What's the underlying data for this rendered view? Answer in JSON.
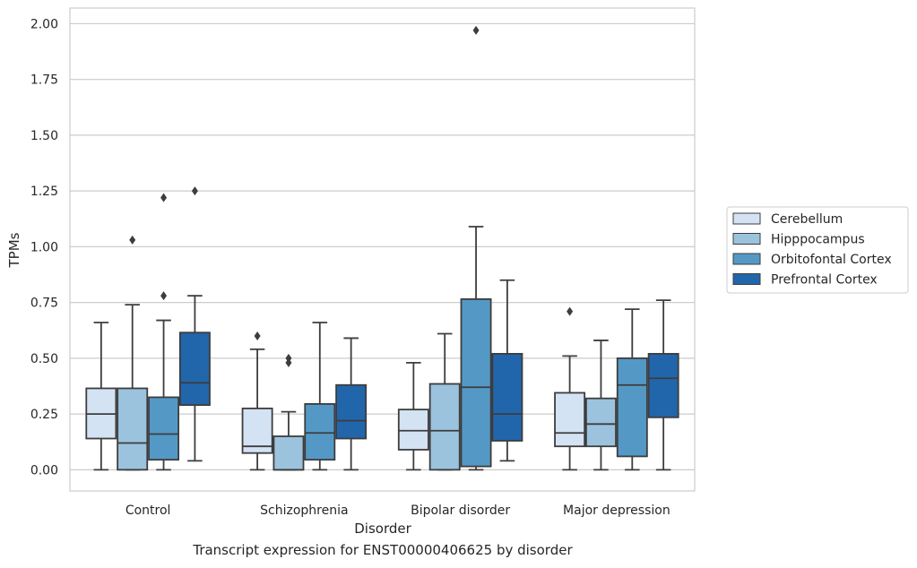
{
  "caption": "Transcript expression for ENST00000406625 by disorder",
  "chart_data": {
    "type": "box",
    "title": "",
    "xlabel": "Disorder",
    "ylabel": "TPMs",
    "ylim": [
      -0.095,
      2.07
    ],
    "yticks": [
      0.0,
      0.25,
      0.5,
      0.75,
      1.0,
      1.25,
      1.5,
      1.75,
      2.0
    ],
    "ytick_labels": [
      "0.00",
      "0.25",
      "0.50",
      "0.75",
      "1.00",
      "1.25",
      "1.50",
      "1.75",
      "2.00"
    ],
    "grid": "horizontal",
    "legend_position": "right",
    "categories": [
      "Control",
      "Schizophrenia",
      "Bipolar disorder",
      "Major depression"
    ],
    "series": [
      {
        "name": "Cerebellum",
        "color": "#d4e3f3",
        "boxes": [
          {
            "whislo": 0.0,
            "q1": 0.14,
            "med": 0.25,
            "q3": 0.365,
            "whishi": 0.66,
            "fliers": []
          },
          {
            "whislo": 0.0,
            "q1": 0.075,
            "med": 0.105,
            "q3": 0.275,
            "whishi": 0.54,
            "fliers": [
              0.6
            ]
          },
          {
            "whislo": 0.0,
            "q1": 0.09,
            "med": 0.175,
            "q3": 0.27,
            "whishi": 0.48,
            "fliers": []
          },
          {
            "whislo": 0.0,
            "q1": 0.105,
            "med": 0.165,
            "q3": 0.345,
            "whishi": 0.51,
            "fliers": [
              0.71
            ]
          }
        ]
      },
      {
        "name": "Hipppocampus",
        "color": "#9bc3de",
        "boxes": [
          {
            "whislo": 0.0,
            "q1": 0.0,
            "med": 0.12,
            "q3": 0.365,
            "whishi": 0.74,
            "fliers": [
              1.03
            ]
          },
          {
            "whislo": 0.0,
            "q1": 0.0,
            "med": 0.0,
            "q3": 0.15,
            "whishi": 0.26,
            "fliers": [
              0.48,
              0.5
            ]
          },
          {
            "whislo": 0.0,
            "q1": 0.0,
            "med": 0.175,
            "q3": 0.385,
            "whishi": 0.61,
            "fliers": []
          },
          {
            "whislo": 0.0,
            "q1": 0.105,
            "med": 0.205,
            "q3": 0.32,
            "whishi": 0.58,
            "fliers": []
          }
        ]
      },
      {
        "name": "Orbitofontal Cortex",
        "color": "#5499c6",
        "boxes": [
          {
            "whislo": 0.0,
            "q1": 0.045,
            "med": 0.16,
            "q3": 0.325,
            "whishi": 0.67,
            "fliers": [
              0.78,
              1.22
            ]
          },
          {
            "whislo": 0.0,
            "q1": 0.045,
            "med": 0.165,
            "q3": 0.295,
            "whishi": 0.66,
            "fliers": []
          },
          {
            "whislo": 0.0,
            "q1": 0.015,
            "med": 0.37,
            "q3": 0.765,
            "whishi": 1.09,
            "fliers": [
              1.97
            ]
          },
          {
            "whislo": 0.0,
            "q1": 0.06,
            "med": 0.38,
            "q3": 0.5,
            "whishi": 0.72,
            "fliers": []
          }
        ]
      },
      {
        "name": "Prefrontal Cortex",
        "color": "#2166ab",
        "boxes": [
          {
            "whislo": 0.04,
            "q1": 0.29,
            "med": 0.39,
            "q3": 0.615,
            "whishi": 0.78,
            "fliers": [
              1.25
            ]
          },
          {
            "whislo": 0.0,
            "q1": 0.14,
            "med": 0.22,
            "q3": 0.38,
            "whishi": 0.59,
            "fliers": []
          },
          {
            "whislo": 0.04,
            "q1": 0.13,
            "med": 0.25,
            "q3": 0.52,
            "whishi": 0.85,
            "fliers": []
          },
          {
            "whislo": 0.0,
            "q1": 0.235,
            "med": 0.41,
            "q3": 0.52,
            "whishi": 0.76,
            "fliers": []
          }
        ]
      }
    ]
  }
}
